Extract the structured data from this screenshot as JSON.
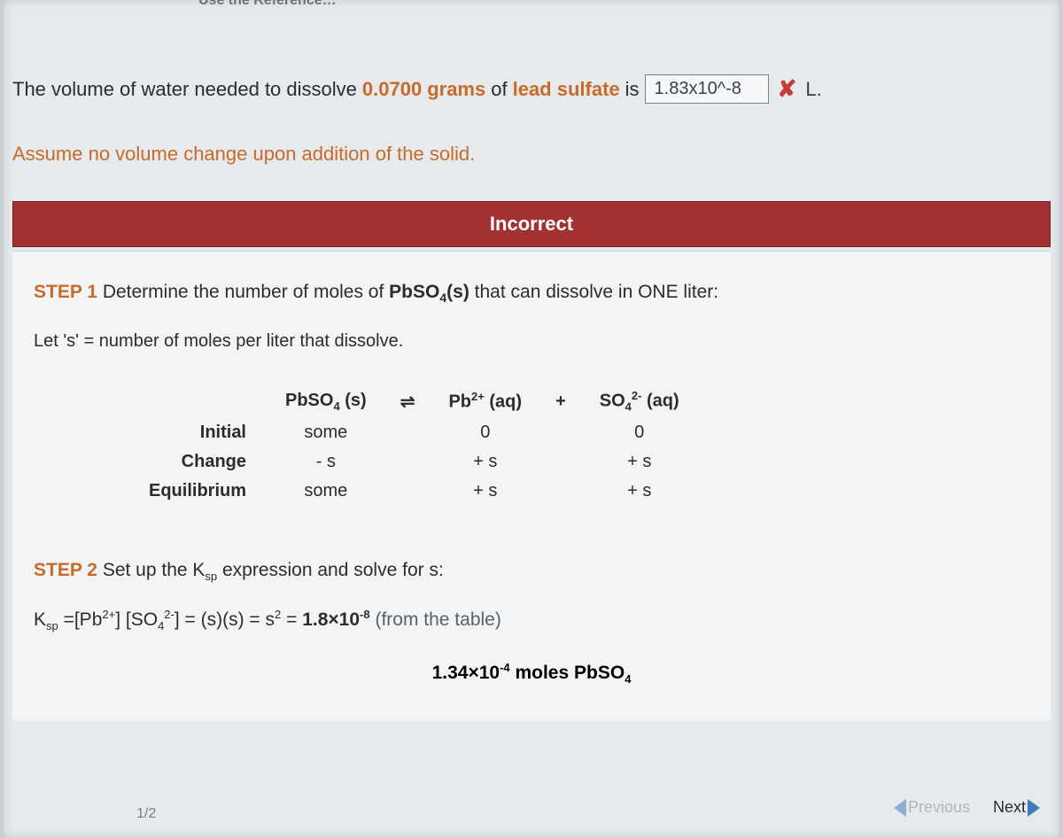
{
  "top_cut_text": "Use the Reference…",
  "question": {
    "pre_text": "The volume of water needed to dissolve",
    "mass": "0.0700",
    "mass_unit": "grams",
    "of_text": "of",
    "compound": "lead sulfate",
    "is_text": "is",
    "user_answer": "1.83x10^-8",
    "unit": "L.",
    "line2": "Assume no volume change upon addition of the solid."
  },
  "status_bar": "Incorrect",
  "step1": {
    "label": "STEP 1",
    "text_a": "Determine the number of moles of",
    "formula": "PbSO₄(s)",
    "text_b": "that can dissolve in ONE liter:",
    "let_line": "Let 's' = number of moles per liter that dissolve."
  },
  "ice": {
    "reaction_lhs": "PbSO₄ (s)",
    "arrows": "⇌",
    "product1": "Pb²⁺ (aq)",
    "plus": "+",
    "product2": "SO₄²⁻ (aq)",
    "rows": {
      "initial_label": "Initial",
      "initial": [
        "some",
        "0",
        "0"
      ],
      "change_label": "Change",
      "change": [
        "- s",
        "+ s",
        "+ s"
      ],
      "eq_label": "Equilibrium",
      "eq": [
        "some",
        "+ s",
        "+ s"
      ]
    }
  },
  "step2": {
    "label": "STEP 2",
    "text": "Set up the Kₛₚ expression and solve for s:",
    "ksp_expr": "Kₛₚ =[Pb²⁺] [SO₄²⁻] = (s)(s) = s² = 1.8×10⁻⁸",
    "from_table": "(from the table)",
    "result": "1.34×10⁻⁴ moles PbSO₄"
  },
  "nav": {
    "previous": "Previous",
    "next": "Next",
    "page_counter": "1/2"
  }
}
